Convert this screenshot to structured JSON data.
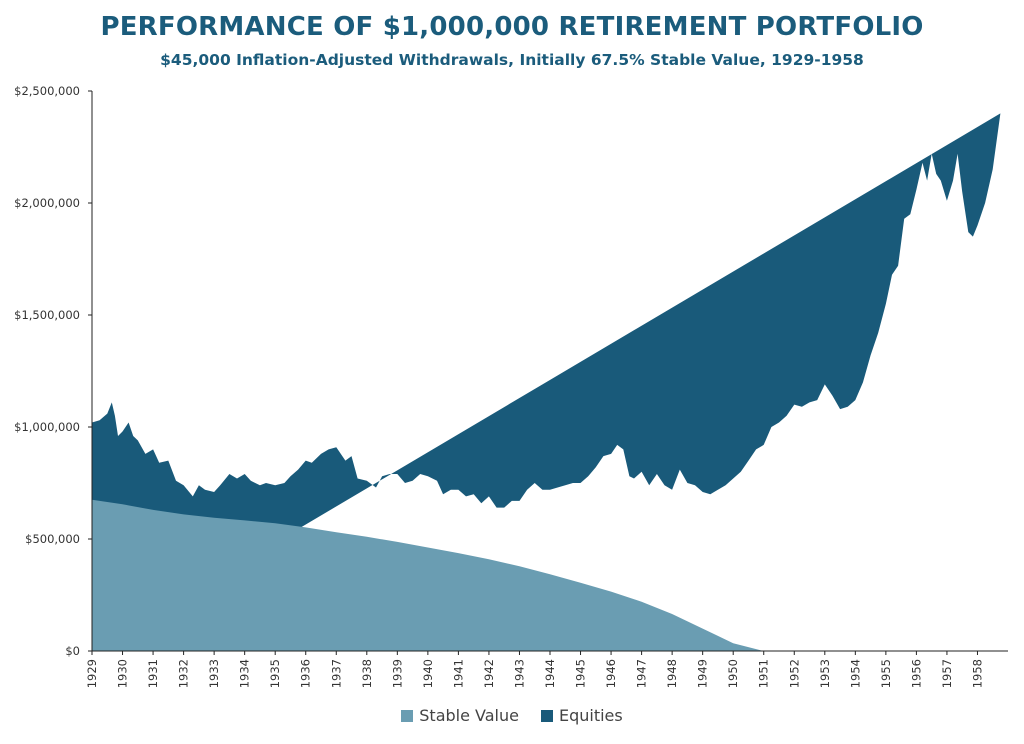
{
  "colors": {
    "title": "#1b5c7c",
    "stable": "#6a9db2",
    "equities": "#195a7a",
    "axis": "#222222",
    "tick_text": "#333333"
  },
  "chart_data": {
    "type": "area",
    "stacked": true,
    "title": "PERFORMANCE OF $1,000,000 RETIREMENT PORTFOLIO",
    "subtitle": "$45,000 Inflation-Adjusted Withdrawals, Initially 67.5% Stable Value, 1929-1958",
    "xlabel": "",
    "ylabel": "",
    "xlim": [
      1929,
      1959
    ],
    "ylim": [
      0,
      2500000
    ],
    "y_ticks": [
      0,
      500000,
      1000000,
      1500000,
      2000000,
      2500000
    ],
    "y_tick_labels": [
      "$0",
      "$500,000",
      "$1,000,000",
      "$1,500,000",
      "$2,000,000",
      "$2,500,000"
    ],
    "x_tick_labels": [
      "1929",
      "1930",
      "1931",
      "1932",
      "1933",
      "1934",
      "1935",
      "1936",
      "1937",
      "1938",
      "1939",
      "1940",
      "1941",
      "1942",
      "1943",
      "1944",
      "1945",
      "1946",
      "1947",
      "1948",
      "1949",
      "1950",
      "1951",
      "1952",
      "1953",
      "1954",
      "1955",
      "1956",
      "1957",
      "1958"
    ],
    "legend_position": "bottom",
    "grid": false,
    "series": [
      {
        "name": "Stable Value",
        "x": [
          1929,
          1930,
          1931,
          1932,
          1933,
          1934,
          1935,
          1936,
          1937,
          1938,
          1939,
          1940,
          1941,
          1942,
          1943,
          1944,
          1945,
          1946,
          1947,
          1948,
          1949,
          1950,
          1951,
          1959
        ],
        "values": [
          675000,
          655000,
          630000,
          610000,
          595000,
          583000,
          570000,
          552000,
          530000,
          510000,
          487000,
          462000,
          437000,
          410000,
          378000,
          343000,
          305000,
          265000,
          220000,
          165000,
          100000,
          35000,
          0,
          0
        ]
      },
      {
        "name": "Equities",
        "total_x": [
          1929,
          1929.25,
          1929.5,
          1929.65,
          1929.75,
          1929.85,
          1930,
          1930.2,
          1930.35,
          1930.5,
          1930.75,
          1931,
          1931.2,
          1931.5,
          1931.75,
          1932,
          1932.3,
          1932.5,
          1932.7,
          1933,
          1933.2,
          1933.5,
          1933.75,
          1934,
          1934.2,
          1934.5,
          1934.7,
          1935,
          1935.3,
          1935.5,
          1935.75,
          1936,
          1936.2,
          1936.5,
          1936.75,
          1937,
          1937.3,
          1937.5,
          1937.7,
          1938,
          1938.3,
          1938.5,
          1938.75,
          1939,
          1939.25,
          1939.5,
          1939.75,
          1940,
          1940.3,
          1940.5,
          1940.75,
          1941,
          1941.25,
          1941.5,
          1941.75,
          1942,
          1942.25,
          1942.5,
          1942.75,
          1943,
          1943.25,
          1943.5,
          1943.75,
          1944,
          1944.25,
          1944.5,
          1944.75,
          1945,
          1945.25,
          1945.5,
          1945.75,
          1946,
          1946.2,
          1946.4,
          1946.6,
          1946.75,
          1947,
          1947.25,
          1947.5,
          1947.75,
          1948,
          1948.25,
          1948.5,
          1948.75,
          1949,
          1949.25,
          1949.5,
          1949.75,
          1950,
          1950.25,
          1950.5,
          1950.75,
          1951,
          1951.25,
          1951.5,
          1951.75,
          1952,
          1952.25,
          1952.5,
          1952.75,
          1953,
          1953.25,
          1953.5,
          1953.75,
          1954,
          1954.25,
          1954.5,
          1954.75,
          1955,
          1955.2,
          1955.4,
          1955.6,
          1955.8,
          1956,
          1956.2,
          1956.35,
          1956.5,
          1956.65,
          1956.8,
          1957,
          1957.2,
          1957.35,
          1957.5,
          1957.7,
          1957.85,
          1958,
          1958.25,
          1958.5,
          1958.75,
          1959
        ],
        "total_values": [
          1020000,
          1030000,
          1060000,
          1110000,
          1050000,
          960000,
          980000,
          1020000,
          960000,
          940000,
          880000,
          900000,
          840000,
          850000,
          760000,
          740000,
          690000,
          740000,
          720000,
          710000,
          740000,
          790000,
          770000,
          790000,
          760000,
          740000,
          750000,
          740000,
          750000,
          780000,
          810000,
          850000,
          840000,
          880000,
          900000,
          910000,
          850000,
          870000,
          770000,
          760000,
          730000,
          780000,
          790000,
          790000,
          750000,
          760000,
          790000,
          780000,
          760000,
          700000,
          720000,
          720000,
          690000,
          700000,
          660000,
          690000,
          640000,
          640000,
          670000,
          670000,
          720000,
          750000,
          720000,
          720000,
          730000,
          740000,
          750000,
          750000,
          780000,
          820000,
          870000,
          880000,
          920000,
          900000,
          780000,
          770000,
          800000,
          740000,
          790000,
          740000,
          720000,
          810000,
          750000,
          740000,
          710000,
          700000,
          720000,
          740000,
          770000,
          800000,
          850000,
          900000,
          920000,
          1000000,
          1020000,
          1050000,
          1100000,
          1090000,
          1110000,
          1120000,
          1190000,
          1140000,
          1080000,
          1090000,
          1120000,
          1200000,
          1320000,
          1420000,
          1550000,
          1680000,
          1720000,
          1930000,
          1950000,
          2060000,
          2180000,
          2100000,
          2220000,
          2130000,
          2100000,
          2010000,
          2100000,
          2220000,
          2050000,
          1870000,
          1850000,
          1900000,
          2000000,
          2150000,
          2400000
        ]
      }
    ]
  }
}
